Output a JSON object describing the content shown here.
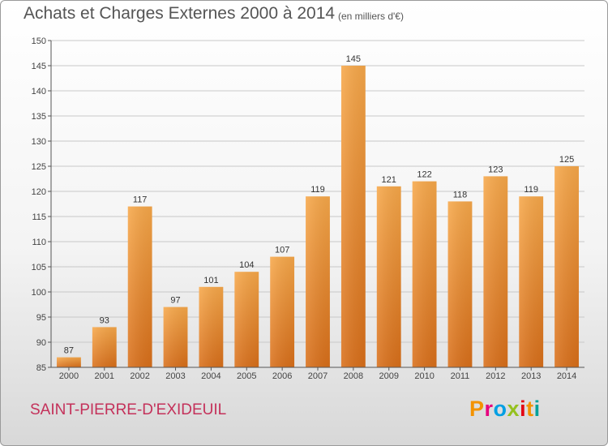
{
  "title": "Achats et Charges Externes 2000 à 2014",
  "subtitle": "(en milliers d'€)",
  "commune": "SAINT-PIERRE-D'EXIDEUIL",
  "brand": {
    "name": "Proxiti",
    "colors": [
      "#f39200",
      "#e6007e",
      "#009fe3",
      "#95c11f",
      "#e30613",
      "#f39200",
      "#00a19a"
    ]
  },
  "colors": {
    "bar_top": "#f7a84a",
    "bar_bottom": "#d96f1a",
    "grid": "#c8c8c8",
    "commune_text": "#c4315a"
  },
  "chart_data": {
    "type": "bar",
    "title": "Achats et Charges Externes 2000 à 2014",
    "subtitle": "(en milliers d'€)",
    "categories": [
      "2000",
      "2001",
      "2002",
      "2003",
      "2004",
      "2005",
      "2006",
      "2007",
      "2008",
      "2009",
      "2010",
      "2011",
      "2012",
      "2013",
      "2014"
    ],
    "values": [
      87,
      93,
      117,
      97,
      101,
      104,
      107,
      119,
      145,
      121,
      122,
      118,
      123,
      119,
      125
    ],
    "ylim": [
      85,
      150
    ],
    "yticks": [
      85,
      90,
      95,
      100,
      105,
      110,
      115,
      120,
      125,
      130,
      135,
      140,
      145,
      150
    ],
    "grid": true,
    "data_labels": true
  }
}
